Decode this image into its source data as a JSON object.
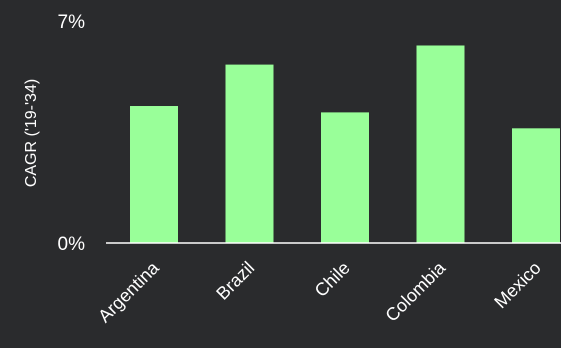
{
  "chart_data": {
    "type": "bar",
    "categories": [
      "Argentina",
      "Brazil",
      "Chile",
      "Colombia",
      "Mexico"
    ],
    "values": [
      4.3,
      5.6,
      4.1,
      6.2,
      3.6
    ],
    "ylabel": "CAGR ('19-'34)",
    "ylim": [
      0,
      7
    ],
    "yticks": [
      "0%",
      "7%"
    ],
    "grid": false,
    "bar_color": "#99ff99",
    "axis_color": "#ffffff",
    "background": "#2a2b2d"
  }
}
